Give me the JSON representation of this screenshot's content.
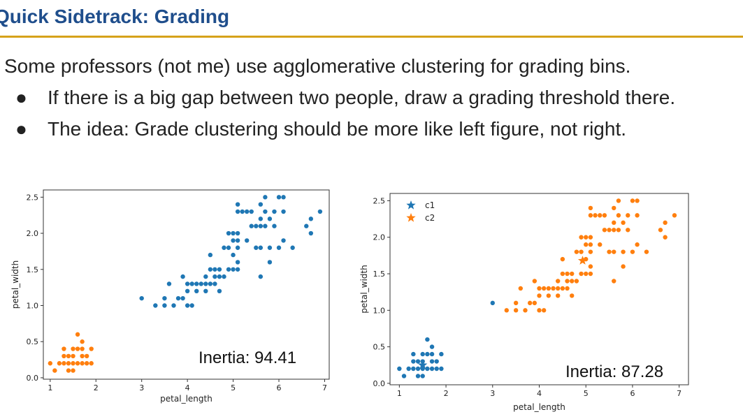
{
  "slide": {
    "title": "Quick Sidetrack: Grading",
    "lead": "Some professors (not me) use agglomerative clustering for grading bins.",
    "bullets": [
      "If there is a big gap between two people, draw a grading threshold there.",
      "The idea: Grade clustering should be more like left figure, not right."
    ],
    "bullet_glyph": "●",
    "colors": {
      "title": "#1f4e8c",
      "rule": "#d6a21a",
      "blue": "#1f77b4",
      "orange": "#ff7f0e"
    }
  },
  "chart_data": [
    {
      "type": "scatter",
      "title": "",
      "xlabel": "petal_length",
      "ylabel": "petal_width",
      "xlim": [
        0.85,
        7.1
      ],
      "ylim": [
        -0.02,
        2.6
      ],
      "xticks": [
        "1",
        "2",
        "3",
        "4",
        "5",
        "6",
        "7"
      ],
      "yticks": [
        "0.0",
        "0.5",
        "1.0",
        "1.5",
        "2.0",
        "2.5"
      ],
      "annotation": "Inertia: 94.41",
      "series": [
        {
          "color": "#1f77b4",
          "points": [
            [
              3,
              1.1
            ],
            [
              3.3,
              1
            ],
            [
              3.5,
              1
            ],
            [
              3.7,
              1
            ],
            [
              3.5,
              1.1
            ],
            [
              3.6,
              1.3
            ],
            [
              3.8,
              1.1
            ],
            [
              3.9,
              1.1
            ],
            [
              3.9,
              1.4
            ],
            [
              4,
              1
            ],
            [
              4,
              1.2
            ],
            [
              4,
              1.3
            ],
            [
              4.1,
              1
            ],
            [
              4.1,
              1.3
            ],
            [
              4.2,
              1.2
            ],
            [
              4.2,
              1.3
            ],
            [
              4.3,
              1.3
            ],
            [
              4.4,
              1.2
            ],
            [
              4.4,
              1.3
            ],
            [
              4.4,
              1.4
            ],
            [
              4.5,
              1.3
            ],
            [
              4.5,
              1.5
            ],
            [
              4.5,
              1.7
            ],
            [
              4.6,
              1.3
            ],
            [
              4.6,
              1.4
            ],
            [
              4.6,
              1.5
            ],
            [
              4.7,
              1.2
            ],
            [
              4.7,
              1.4
            ],
            [
              4.7,
              1.5
            ],
            [
              4.8,
              1.4
            ],
            [
              4.8,
              1.8
            ],
            [
              4.9,
              1.5
            ],
            [
              4.9,
              1.8
            ],
            [
              4.9,
              2
            ],
            [
              5,
              1.5
            ],
            [
              5,
              1.7
            ],
            [
              5,
              1.9
            ],
            [
              5,
              2
            ],
            [
              5.1,
              1.5
            ],
            [
              5.1,
              1.6
            ],
            [
              5.1,
              1.8
            ],
            [
              5.1,
              1.9
            ],
            [
              5.1,
              2
            ],
            [
              5.1,
              2.3
            ],
            [
              5.1,
              2.4
            ],
            [
              5.2,
              2.3
            ],
            [
              5.3,
              1.9
            ],
            [
              5.3,
              2.3
            ],
            [
              5.4,
              2.1
            ],
            [
              5.4,
              2.3
            ],
            [
              5.5,
              1.8
            ],
            [
              5.5,
              2.1
            ],
            [
              5.6,
              1.4
            ],
            [
              5.6,
              1.8
            ],
            [
              5.6,
              2.1
            ],
            [
              5.6,
              2.2
            ],
            [
              5.6,
              2.4
            ],
            [
              5.7,
              2.1
            ],
            [
              5.7,
              2.3
            ],
            [
              5.7,
              2.5
            ],
            [
              5.8,
              1.6
            ],
            [
              5.8,
              1.8
            ],
            [
              5.8,
              2.2
            ],
            [
              5.9,
              2.1
            ],
            [
              5.9,
              2.3
            ],
            [
              6,
              1.8
            ],
            [
              6,
              2.5
            ],
            [
              6.1,
              1.9
            ],
            [
              6.1,
              2.3
            ],
            [
              6.1,
              2.5
            ],
            [
              6.3,
              1.8
            ],
            [
              6.6,
              2.1
            ],
            [
              6.7,
              2.0
            ],
            [
              6.7,
              2.2
            ],
            [
              6.9,
              2.3
            ]
          ]
        },
        {
          "color": "#ff7f0e",
          "points": [
            [
              1,
              0.2
            ],
            [
              1.1,
              0.1
            ],
            [
              1.2,
              0.2
            ],
            [
              1.3,
              0.2
            ],
            [
              1.3,
              0.3
            ],
            [
              1.3,
              0.4
            ],
            [
              1.4,
              0.1
            ],
            [
              1.4,
              0.2
            ],
            [
              1.4,
              0.3
            ],
            [
              1.5,
              0.1
            ],
            [
              1.5,
              0.2
            ],
            [
              1.5,
              0.3
            ],
            [
              1.5,
              0.4
            ],
            [
              1.6,
              0.2
            ],
            [
              1.6,
              0.4
            ],
            [
              1.6,
              0.6
            ],
            [
              1.7,
              0.2
            ],
            [
              1.7,
              0.3
            ],
            [
              1.7,
              0.4
            ],
            [
              1.7,
              0.5
            ],
            [
              1.8,
              0.2
            ],
            [
              1.8,
              0.3
            ],
            [
              1.9,
              0.2
            ],
            [
              1.9,
              0.4
            ]
          ]
        }
      ]
    },
    {
      "type": "scatter",
      "title": "",
      "xlabel": "petal_length",
      "ylabel": "petal_width",
      "xlim": [
        0.8,
        7.2
      ],
      "ylim": [
        -0.02,
        2.6
      ],
      "xticks": [
        "1",
        "2",
        "3",
        "4",
        "5",
        "6",
        "7"
      ],
      "yticks": [
        "0.0",
        "0.5",
        "1.0",
        "1.5",
        "2.0",
        "2.5"
      ],
      "annotation": "Inertia: 87.28",
      "legend": [
        {
          "name": "c1",
          "color": "#1f77b4"
        },
        {
          "name": "c2",
          "color": "#ff7f0e"
        }
      ],
      "centroids": [
        {
          "x": 1.5,
          "y": 0.25,
          "color": "#1f77b4"
        },
        {
          "x": 4.93,
          "y": 1.68,
          "color": "#ff7f0e"
        }
      ],
      "series": [
        {
          "name": "c1",
          "color": "#1f77b4",
          "points": [
            [
              1,
              0.2
            ],
            [
              1.1,
              0.1
            ],
            [
              1.2,
              0.2
            ],
            [
              1.3,
              0.2
            ],
            [
              1.3,
              0.3
            ],
            [
              1.3,
              0.4
            ],
            [
              1.4,
              0.1
            ],
            [
              1.4,
              0.2
            ],
            [
              1.4,
              0.3
            ],
            [
              1.5,
              0.1
            ],
            [
              1.5,
              0.2
            ],
            [
              1.5,
              0.3
            ],
            [
              1.5,
              0.4
            ],
            [
              1.6,
              0.2
            ],
            [
              1.6,
              0.4
            ],
            [
              1.6,
              0.6
            ],
            [
              1.7,
              0.2
            ],
            [
              1.7,
              0.3
            ],
            [
              1.7,
              0.4
            ],
            [
              1.7,
              0.5
            ],
            [
              1.8,
              0.2
            ],
            [
              1.8,
              0.3
            ],
            [
              1.9,
              0.2
            ],
            [
              1.9,
              0.4
            ],
            [
              3,
              1.1
            ]
          ]
        },
        {
          "name": "c2",
          "color": "#ff7f0e",
          "points": [
            [
              3.3,
              1
            ],
            [
              3.5,
              1
            ],
            [
              3.7,
              1
            ],
            [
              3.5,
              1.1
            ],
            [
              3.6,
              1.3
            ],
            [
              3.8,
              1.1
            ],
            [
              3.9,
              1.1
            ],
            [
              3.9,
              1.4
            ],
            [
              4,
              1
            ],
            [
              4,
              1.2
            ],
            [
              4,
              1.3
            ],
            [
              4.1,
              1
            ],
            [
              4.1,
              1.3
            ],
            [
              4.2,
              1.2
            ],
            [
              4.2,
              1.3
            ],
            [
              4.3,
              1.3
            ],
            [
              4.4,
              1.2
            ],
            [
              4.4,
              1.3
            ],
            [
              4.4,
              1.4
            ],
            [
              4.5,
              1.3
            ],
            [
              4.5,
              1.5
            ],
            [
              4.5,
              1.7
            ],
            [
              4.6,
              1.3
            ],
            [
              4.6,
              1.4
            ],
            [
              4.6,
              1.5
            ],
            [
              4.7,
              1.2
            ],
            [
              4.7,
              1.4
            ],
            [
              4.7,
              1.5
            ],
            [
              4.8,
              1.4
            ],
            [
              4.8,
              1.8
            ],
            [
              4.9,
              1.5
            ],
            [
              4.9,
              1.8
            ],
            [
              4.9,
              2
            ],
            [
              5,
              1.5
            ],
            [
              5,
              1.7
            ],
            [
              5,
              1.9
            ],
            [
              5,
              2
            ],
            [
              5.1,
              1.5
            ],
            [
              5.1,
              1.6
            ],
            [
              5.1,
              1.8
            ],
            [
              5.1,
              1.9
            ],
            [
              5.1,
              2
            ],
            [
              5.1,
              2.3
            ],
            [
              5.1,
              2.4
            ],
            [
              5.2,
              2.3
            ],
            [
              5.3,
              1.9
            ],
            [
              5.3,
              2.3
            ],
            [
              5.4,
              2.1
            ],
            [
              5.4,
              2.3
            ],
            [
              5.5,
              1.8
            ],
            [
              5.5,
              2.1
            ],
            [
              5.6,
              1.4
            ],
            [
              5.6,
              1.8
            ],
            [
              5.6,
              2.1
            ],
            [
              5.6,
              2.2
            ],
            [
              5.6,
              2.4
            ],
            [
              5.7,
              2.1
            ],
            [
              5.7,
              2.3
            ],
            [
              5.7,
              2.5
            ],
            [
              5.8,
              1.6
            ],
            [
              5.8,
              1.8
            ],
            [
              5.8,
              2.2
            ],
            [
              5.9,
              2.1
            ],
            [
              5.9,
              2.3
            ],
            [
              6,
              1.8
            ],
            [
              6,
              2.5
            ],
            [
              6.1,
              1.9
            ],
            [
              6.1,
              2.3
            ],
            [
              6.1,
              2.5
            ],
            [
              6.3,
              1.8
            ],
            [
              6.6,
              2.1
            ],
            [
              6.7,
              2.0
            ],
            [
              6.7,
              2.2
            ],
            [
              6.9,
              2.3
            ]
          ]
        }
      ]
    }
  ]
}
